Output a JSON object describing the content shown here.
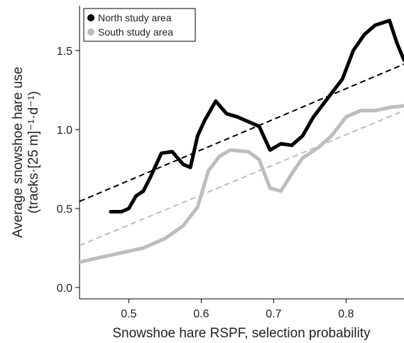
{
  "chart_data": {
    "type": "line",
    "x_label": "Snowshoe hare RSPF, selection probability",
    "y_label_lines": [
      "Average snowshoe hare use",
      "(tracks·[25 m]⁻¹·d⁻¹)"
    ],
    "xlim": [
      0.432,
      0.88
    ],
    "ylim": [
      -0.072,
      1.784
    ],
    "xticks": [
      0.5,
      0.6,
      0.7,
      0.8
    ],
    "yticks": [
      {
        "value": 0,
        "label": "0.0"
      },
      0.5,
      {
        "value": 1,
        "label": "1.0"
      },
      1.5
    ],
    "legend": "upper left",
    "series": [
      {
        "name": "North study area",
        "color": "#000000",
        "x": [
          0.475,
          0.49,
          0.5,
          0.51,
          0.52,
          0.53,
          0.545,
          0.56,
          0.575,
          0.585,
          0.595,
          0.605,
          0.62,
          0.635,
          0.65,
          0.665,
          0.68,
          0.695,
          0.71,
          0.725,
          0.74,
          0.755,
          0.765,
          0.78,
          0.795,
          0.81,
          0.825,
          0.84,
          0.86,
          0.87,
          0.88
        ],
        "values": [
          0.48,
          0.48,
          0.5,
          0.58,
          0.61,
          0.7,
          0.85,
          0.86,
          0.78,
          0.76,
          0.96,
          1.06,
          1.18,
          1.1,
          1.08,
          1.05,
          1.02,
          0.87,
          0.91,
          0.9,
          0.96,
          1.08,
          1.14,
          1.23,
          1.32,
          1.5,
          1.6,
          1.66,
          1.69,
          1.55,
          1.44
        ]
      },
      {
        "name": "South study area",
        "color": "#bdbdbd",
        "x": [
          0.432,
          0.46,
          0.49,
          0.52,
          0.55,
          0.575,
          0.595,
          0.61,
          0.625,
          0.64,
          0.665,
          0.68,
          0.695,
          0.71,
          0.725,
          0.74,
          0.76,
          0.78,
          0.8,
          0.82,
          0.84,
          0.86,
          0.88
        ],
        "values": [
          0.16,
          0.19,
          0.22,
          0.25,
          0.31,
          0.39,
          0.51,
          0.74,
          0.83,
          0.87,
          0.86,
          0.81,
          0.63,
          0.61,
          0.72,
          0.82,
          0.88,
          0.96,
          1.08,
          1.12,
          1.12,
          1.14,
          1.15
        ]
      }
    ],
    "trend_lines": [
      {
        "color": "#000000",
        "x": [
          0.432,
          0.88
        ],
        "values": [
          0.545,
          1.414
        ]
      },
      {
        "color": "#bdbdbd",
        "x": [
          0.432,
          0.88
        ],
        "values": [
          0.266,
          1.12
        ]
      }
    ]
  }
}
